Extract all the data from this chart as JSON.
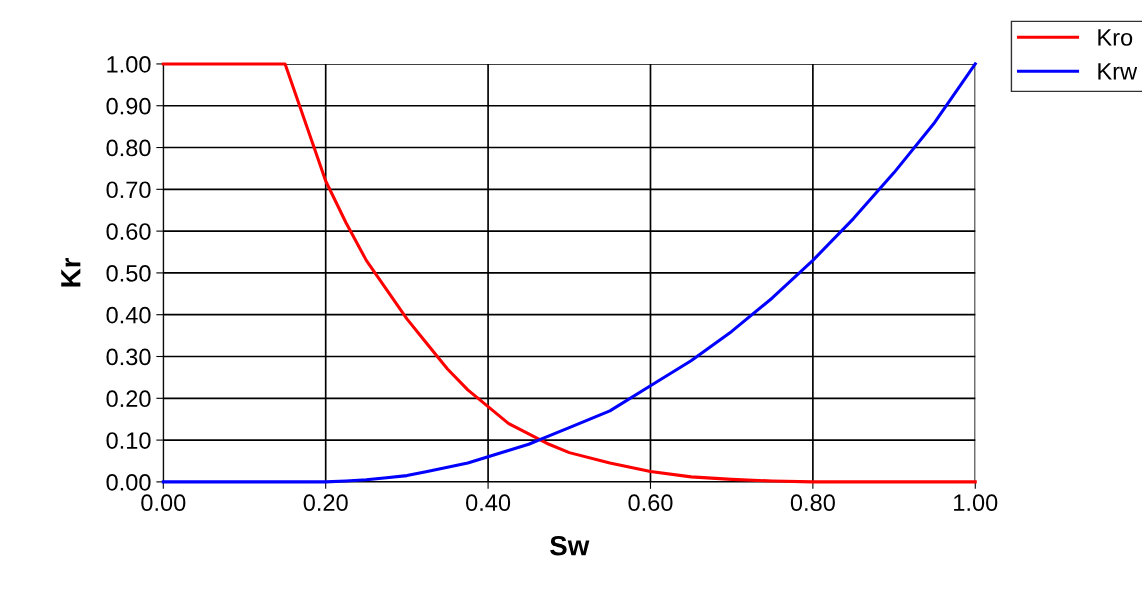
{
  "chart_data": {
    "type": "line",
    "xlabel": "Sw",
    "ylabel": "Kr",
    "x": [
      0,
      0.05,
      0.1,
      0.15,
      0.175,
      0.2,
      0.225,
      0.25,
      0.275,
      0.3,
      0.325,
      0.35,
      0.375,
      0.4,
      0.425,
      0.45,
      0.475,
      0.5,
      0.55,
      0.6,
      0.65,
      0.7,
      0.75,
      0.8,
      0.85,
      0.9,
      0.95,
      1.0
    ],
    "series": [
      {
        "name": "Kro",
        "color": "#ff0000",
        "values": [
          1.0,
          1.0,
          1.0,
          1.0,
          0.86,
          0.72,
          0.62,
          0.53,
          0.46,
          0.39,
          0.33,
          0.27,
          0.22,
          0.18,
          0.14,
          0.115,
          0.09,
          0.07,
          0.045,
          0.025,
          0.012,
          0.006,
          0.002,
          0.0,
          0.0,
          0.0,
          0.0,
          0.0
        ]
      },
      {
        "name": "Krw",
        "color": "#0000ff",
        "values": [
          0.0,
          0.0,
          0.0,
          0.0,
          0.0,
          0.0,
          0.002,
          0.005,
          0.01,
          0.015,
          0.025,
          0.035,
          0.045,
          0.06,
          0.075,
          0.09,
          0.11,
          0.13,
          0.17,
          0.23,
          0.29,
          0.36,
          0.44,
          0.53,
          0.63,
          0.74,
          0.86,
          1.0
        ]
      }
    ],
    "xlim": [
      0,
      1
    ],
    "ylim": [
      0,
      1
    ],
    "xticks": [
      {
        "value": 0,
        "label": "0.00"
      },
      {
        "value": 0.2,
        "label": "0.20"
      },
      {
        "value": 0.4,
        "label": "0.40"
      },
      {
        "value": 0.6,
        "label": "0.60"
      },
      {
        "value": 0.8,
        "label": "0.80"
      },
      {
        "value": 1.0,
        "label": "1.00"
      }
    ],
    "yticks": [
      {
        "value": 0,
        "label": "0.00"
      },
      {
        "value": 0.1,
        "label": "0.10"
      },
      {
        "value": 0.2,
        "label": "0.20"
      },
      {
        "value": 0.3,
        "label": "0.30"
      },
      {
        "value": 0.4,
        "label": "0.40"
      },
      {
        "value": 0.5,
        "label": "0.50"
      },
      {
        "value": 0.6,
        "label": "0.60"
      },
      {
        "value": 0.7,
        "label": "0.70"
      },
      {
        "value": 0.8,
        "label": "0.80"
      },
      {
        "value": 0.9,
        "label": "0.90"
      },
      {
        "value": 1.0,
        "label": "1.00"
      }
    ],
    "grid": true,
    "legend": "top right",
    "marker": "none",
    "line_style": "solid"
  }
}
